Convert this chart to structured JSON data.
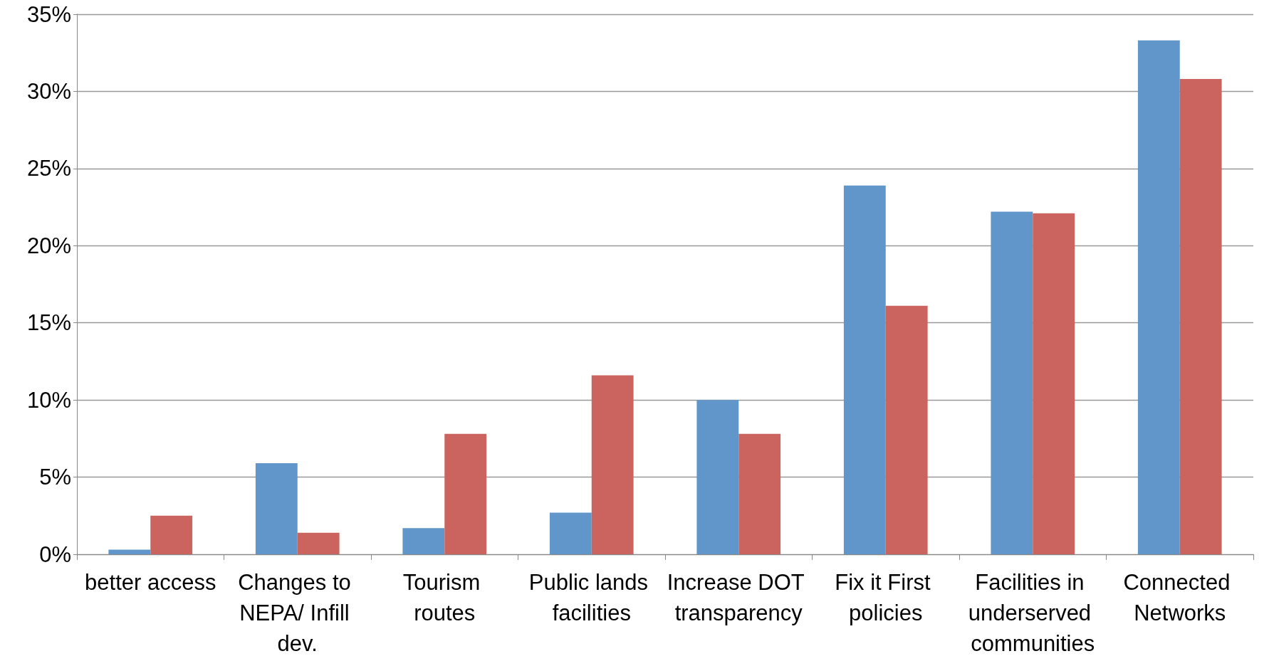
{
  "chart_data": {
    "type": "bar",
    "categories": [
      "better access",
      "Changes to NEPA/ Infill dev.",
      "Tourism routes",
      "Public lands facilities",
      "Increase DOT transparency",
      "Fix it First policies",
      "Facilities in underserved communities",
      "Connected Networks"
    ],
    "series": [
      {
        "color": "#6096c9",
        "values": [
          0.3,
          5.9,
          1.7,
          2.7,
          10.0,
          23.9,
          22.2,
          33.3
        ]
      },
      {
        "color": "#cb645e",
        "values": [
          2.5,
          1.4,
          7.8,
          11.6,
          7.8,
          16.1,
          22.1,
          30.8
        ]
      }
    ],
    "ylim": [
      0,
      35
    ],
    "yticks": [
      {
        "value": 0,
        "label": "0%"
      },
      {
        "value": 5,
        "label": "5%"
      },
      {
        "value": 10,
        "label": "10%"
      },
      {
        "value": 15,
        "label": "15%"
      },
      {
        "value": 20,
        "label": "20%"
      },
      {
        "value": 25,
        "label": "25%"
      },
      {
        "value": 30,
        "label": "30%"
      },
      {
        "value": 35,
        "label": "35%"
      }
    ],
    "grid": "y"
  }
}
